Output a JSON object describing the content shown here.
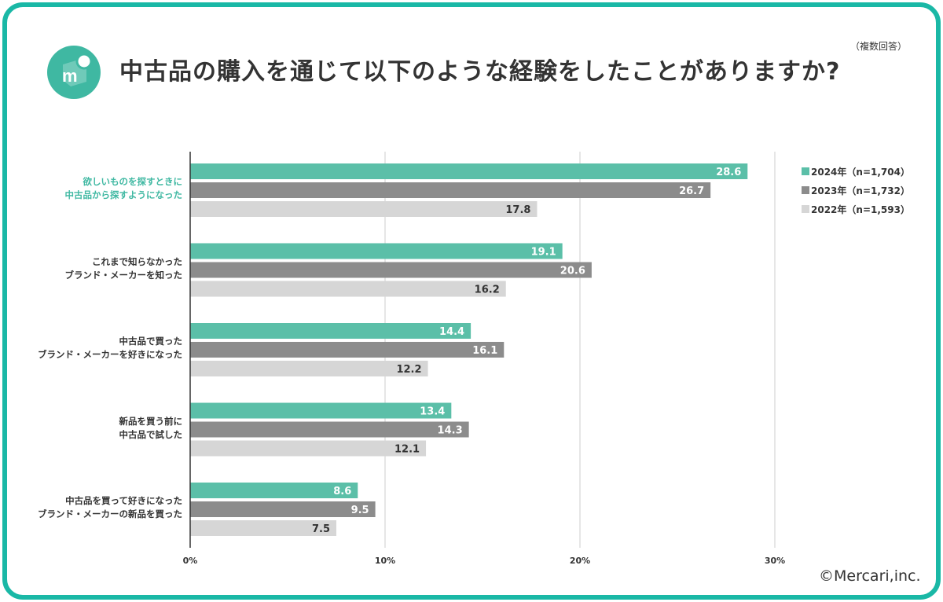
{
  "header": {
    "title": "中古品の購入を通じて以下のような経験をしたことがありますか?",
    "note": "（複数回答）"
  },
  "footer": {
    "copyright": "©Mercari,inc."
  },
  "colors": {
    "border": "#1ab8a6",
    "s2024": "#5bbfa8",
    "s2023": "#8c8c8c",
    "s2022": "#d6d6d6",
    "highlight": "#3fb8a2"
  },
  "chart_data": {
    "type": "bar",
    "orientation": "horizontal",
    "title": "中古品の購入を通じて以下のような経験をしたことがありますか?",
    "categories": [
      [
        "欲しいものを探すときに",
        "中古品から探すようになった"
      ],
      [
        "これまで知らなかった",
        "ブランド・メーカーを知った"
      ],
      [
        "中古品で買った",
        "ブランド・メーカーを好きになった"
      ],
      [
        "新品を買う前に",
        "中古品で試した"
      ],
      [
        "中古品を買って好きになった",
        "ブランド・メーカーの新品を買った"
      ]
    ],
    "series": [
      {
        "name": "2024年（n=1,704）",
        "color": "#5bbfa8",
        "label_color": "#ffffff",
        "values": [
          28.6,
          19.1,
          14.4,
          13.4,
          8.6
        ]
      },
      {
        "name": "2023年（n=1,732）",
        "color": "#8c8c8c",
        "label_color": "#ffffff",
        "values": [
          26.7,
          20.6,
          16.1,
          14.3,
          9.5
        ]
      },
      {
        "name": "2022年（n=1,593）",
        "color": "#d6d6d6",
        "label_color": "#333333",
        "values": [
          17.8,
          16.2,
          12.2,
          12.1,
          7.5
        ]
      }
    ],
    "xlim": [
      0,
      30
    ],
    "xticks": [
      "0%",
      "10%",
      "20%",
      "30%"
    ],
    "legend": "top-right",
    "grid": true
  }
}
